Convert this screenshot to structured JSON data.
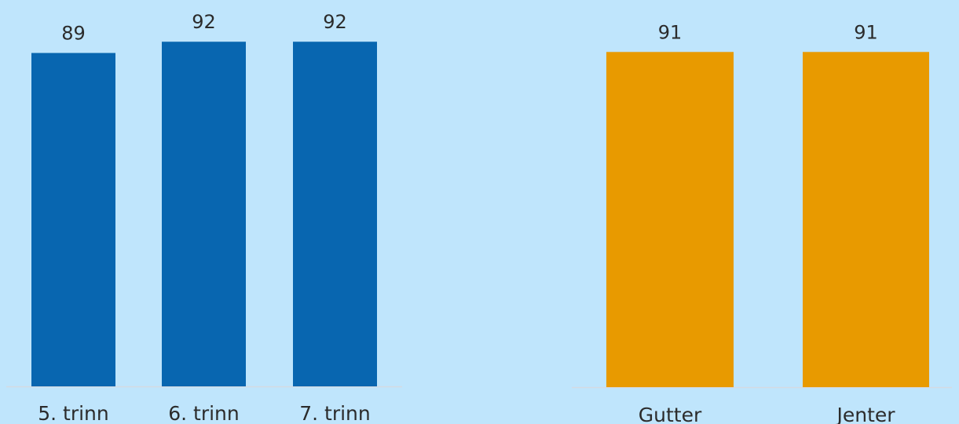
{
  "chart_data": [
    {
      "type": "bar",
      "title": "",
      "xlabel": "",
      "ylabel": "",
      "categories": [
        "5. trinn",
        "6. trinn",
        "7. trinn"
      ],
      "values": [
        89,
        92,
        92
      ],
      "ylim": [
        0,
        100
      ],
      "color": "#0866b0",
      "grid": false,
      "legend": false
    },
    {
      "type": "bar",
      "title": "",
      "xlabel": "",
      "ylabel": "",
      "categories": [
        "Gutter",
        "Jenter"
      ],
      "values": [
        91,
        91
      ],
      "ylim": [
        0,
        100
      ],
      "color": "#e89a00",
      "grid": false,
      "legend": false
    }
  ]
}
